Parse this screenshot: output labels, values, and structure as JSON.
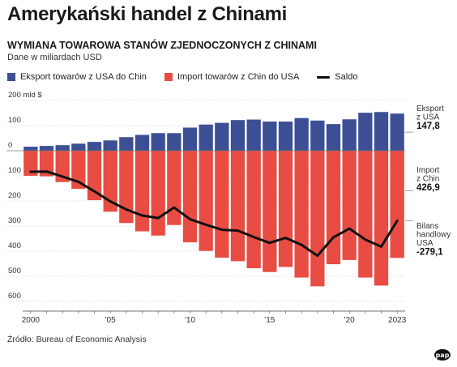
{
  "title": "Amerykański handel z Chinami",
  "subtitle": "WYMIANA TOWAROWA STANÓW ZJEDNOCZONYCH Z CHINAMI",
  "unit_note": "Dane w miliardach USD",
  "legend": {
    "export": "Eksport towarów z USA do Chin",
    "import": "Import towarów z Chin do USA",
    "balance": "Saldo"
  },
  "colors": {
    "export": "#3d4f94",
    "import": "#e84c43",
    "balance": "#111111"
  },
  "annotations": {
    "export": {
      "lines": [
        "Eksport",
        "z USA"
      ],
      "value": "147,8"
    },
    "import": {
      "lines": [
        "Import",
        "z Chin"
      ],
      "value": "426,9"
    },
    "balance": {
      "lines": [
        "Bilans",
        "handlowy",
        "USA"
      ],
      "value": "-279,1"
    }
  },
  "source": "Źródło: Bureau of Economic Analysis",
  "logo": "pap",
  "chart_data": {
    "type": "bar",
    "x": [
      2000,
      2001,
      2002,
      2003,
      2004,
      2005,
      2006,
      2007,
      2008,
      2009,
      2010,
      2011,
      2012,
      2013,
      2014,
      2015,
      2016,
      2017,
      2018,
      2019,
      2020,
      2021,
      2022,
      2023
    ],
    "series": [
      {
        "name": "Eksport towarów z USA do Chin",
        "values": [
          16,
          19,
          22,
          28,
          35,
          41,
          54,
          63,
          70,
          70,
          92,
          104,
          111,
          122,
          124,
          116,
          116,
          130,
          120,
          106,
          125,
          151,
          154,
          147.8
        ]
      },
      {
        "name": "Import towarów z Chin do USA",
        "values": [
          -100,
          -102,
          -125,
          -152,
          -197,
          -243,
          -288,
          -321,
          -338,
          -296,
          -365,
          -399,
          -426,
          -440,
          -468,
          -483,
          -463,
          -505,
          -540,
          -452,
          -435,
          -505,
          -537,
          -426.9
        ]
      },
      {
        "name": "Saldo",
        "values": [
          -84,
          -83,
          -103,
          -124,
          -162,
          -202,
          -234,
          -258,
          -268,
          -226,
          -273,
          -295,
          -315,
          -318,
          -344,
          -367,
          -347,
          -375,
          -418,
          -345,
          -310,
          -354,
          -382,
          -279.1
        ]
      }
    ],
    "y_tick_labels": [
      "200 mld $",
      "100",
      "0",
      "100",
      "200",
      "300",
      "400",
      "500",
      "600"
    ],
    "y_tick_values": [
      200,
      100,
      0,
      -100,
      -200,
      -300,
      -400,
      -500,
      -600
    ],
    "x_tick_labels": [
      {
        "year": 2000,
        "label": "2000"
      },
      {
        "year": 2005,
        "label": "'05"
      },
      {
        "year": 2010,
        "label": "'10"
      },
      {
        "year": 2015,
        "label": "'15"
      },
      {
        "year": 2020,
        "label": "'20"
      },
      {
        "year": 2023,
        "label": "2023"
      }
    ],
    "ylim": [
      -620,
      205
    ],
    "grid": true
  }
}
